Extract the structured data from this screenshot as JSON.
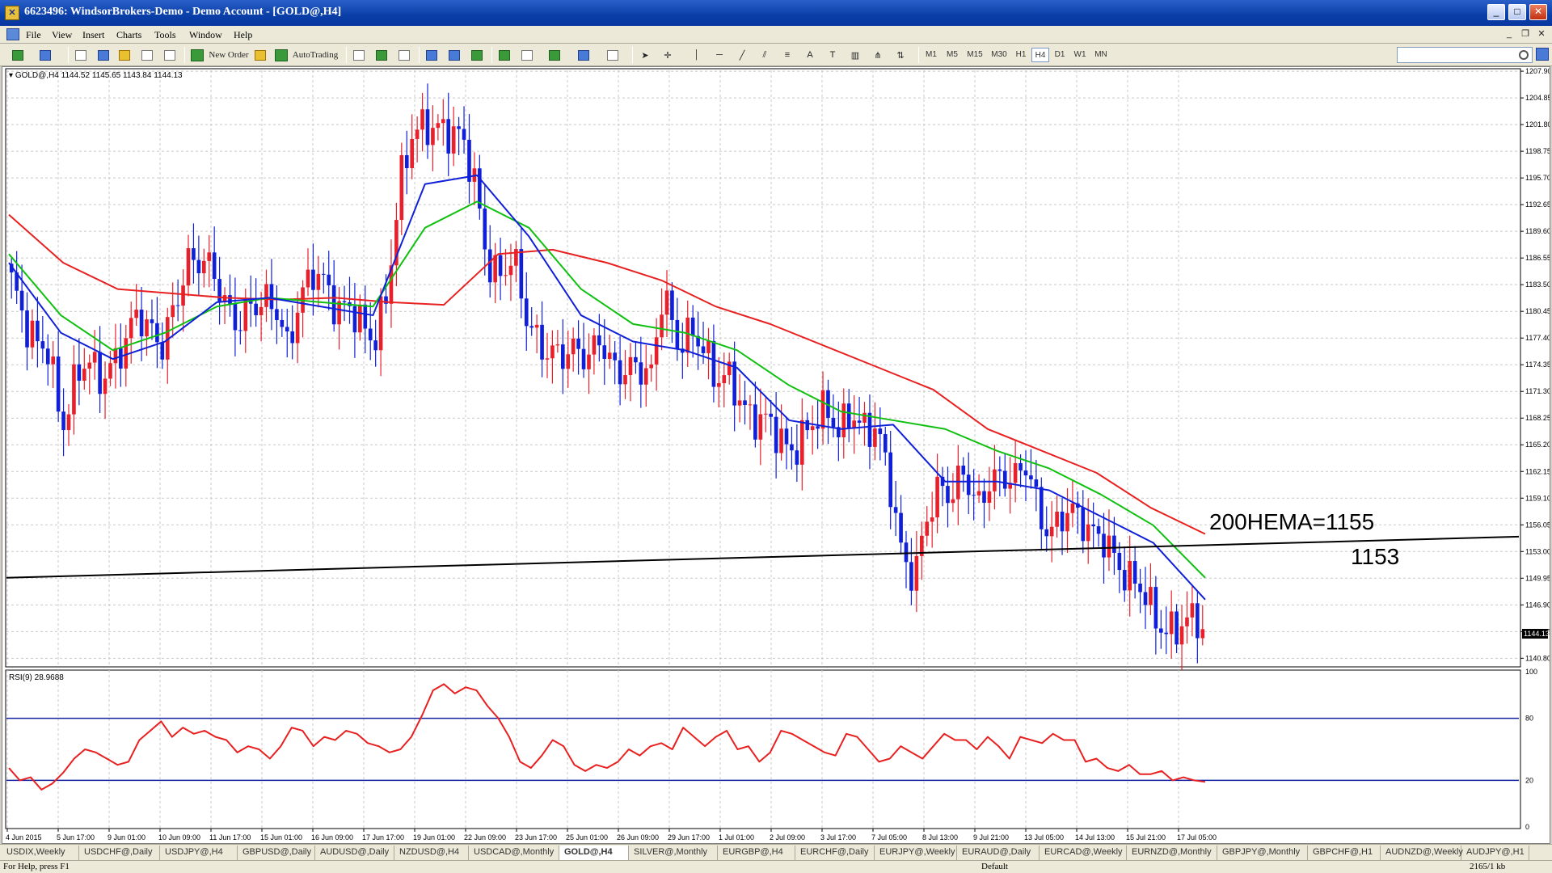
{
  "window": {
    "title": "6623496: WindsorBrokers-Demo - Demo Account - [GOLD@,H4]",
    "app_icon": "metatrader-icon"
  },
  "menu": [
    "File",
    "View",
    "Insert",
    "Charts",
    "Tools",
    "Window",
    "Help"
  ],
  "toolbar": {
    "new_order": "New Order",
    "autotrading": "AutoTrading",
    "timeframes": [
      "M1",
      "M5",
      "M15",
      "M30",
      "H1",
      "H4",
      "D1",
      "W1",
      "MN"
    ],
    "active_timeframe": "H4"
  },
  "chart": {
    "header": "GOLD@,H4  1144.52 1145.65 1143.84 1144.13",
    "current_price": "1144.13",
    "annotation_hema": "200HEMA=1155",
    "annotation_level": "1153",
    "rsi_label": "RSI(9) 28.9688",
    "colors": {
      "bull": "#e8202c",
      "bear": "#1020d8",
      "ema_red": "#e82020",
      "ema_green": "#10c010",
      "ema_blue": "#1020d8",
      "trendline": "#000000",
      "rsi": "#e82020",
      "rsi_levels": "#1020a0"
    }
  },
  "chart_data": {
    "type": "candlestick",
    "symbol": "GOLD@",
    "timeframe": "H4",
    "price_ticks": [
      "1207.90",
      "1204.85",
      "1201.80",
      "1198.75",
      "1195.70",
      "1192.65",
      "1189.60",
      "1186.55",
      "1183.50",
      "1180.45",
      "1177.40",
      "1174.35",
      "1171.30",
      "1168.25",
      "1165.20",
      "1162.15",
      "1159.10",
      "1156.05",
      "1153.00",
      "1149.95",
      "1146.90",
      "1143.85",
      "1140.80"
    ],
    "ylim": [
      1140.0,
      1208.0
    ],
    "time_ticks": [
      "4 Jun 2015",
      "5 Jun 17:00",
      "9 Jun 01:00",
      "10 Jun 09:00",
      "11 Jun 17:00",
      "15 Jun 01:00",
      "16 Jun 09:00",
      "17 Jun 17:00",
      "19 Jun 01:00",
      "22 Jun 09:00",
      "23 Jun 17:00",
      "25 Jun 01:00",
      "26 Jun 09:00",
      "29 Jun 17:00",
      "1 Jul 01:00",
      "2 Jul 09:00",
      "3 Jul 17:00",
      "7 Jul 05:00",
      "8 Jul 13:00",
      "9 Jul 21:00",
      "13 Jul 05:00",
      "14 Jul 13:00",
      "15 Jul 21:00",
      "17 Jul 05:00"
    ],
    "close_path": [
      1184,
      1178,
      1176,
      1177,
      1168,
      1172,
      1174,
      1172,
      1175,
      1178,
      1180,
      1177,
      1176,
      1182,
      1187,
      1186,
      1184,
      1181,
      1180,
      1182,
      1181,
      1180,
      1176,
      1183,
      1186,
      1183,
      1179,
      1181,
      1180,
      1178,
      1182,
      1194,
      1201,
      1203,
      1202,
      1200,
      1199,
      1195,
      1187,
      1185,
      1186,
      1179,
      1177,
      1177,
      1176,
      1175,
      1174,
      1178,
      1175,
      1174,
      1173,
      1172,
      1184,
      1178,
      1178,
      1176,
      1172,
      1174,
      1172,
      1168,
      1167,
      1166,
      1165,
      1167,
      1168,
      1168,
      1166,
      1170,
      1168,
      1167,
      1160,
      1152,
      1151,
      1158,
      1160,
      1158,
      1162,
      1159,
      1162,
      1161,
      1160,
      1163,
      1158,
      1156,
      1157,
      1156,
      1155,
      1156,
      1153,
      1149,
      1148,
      1146,
      1145,
      1145,
      1144.5,
      1144.13
    ],
    "ema_red": [
      1191.5,
      1186,
      1183,
      1182.5,
      1182,
      1181.8,
      1182,
      1181.5,
      1181.2,
      1187,
      1187.5,
      1186,
      1184,
      1181,
      1179,
      1176.5,
      1174,
      1171.5,
      1167,
      1164.5,
      1162,
      1158,
      1155
    ],
    "ema_green": [
      1187,
      1180,
      1176,
      1178,
      1181,
      1182,
      1181.5,
      1181,
      1190,
      1193,
      1190,
      1183,
      1179,
      1178,
      1176,
      1172,
      1169,
      1168,
      1167,
      1164.5,
      1162.5,
      1159.5,
      1156,
      1150
    ],
    "ema_blue": [
      1186,
      1178,
      1175,
      1177,
      1181.5,
      1182,
      1181,
      1180,
      1195,
      1196,
      1189,
      1180,
      1177,
      1176,
      1174,
      1168,
      1167,
      1167.5,
      1161,
      1161,
      1160,
      1157,
      1154,
      1147.5
    ],
    "trendline": {
      "start": 1150.0,
      "end": 1154.7
    },
    "rsi": {
      "period": 9,
      "value": 28.9688,
      "levels": [
        70,
        30
      ],
      "ylim": [
        0,
        100
      ],
      "y_ticks": [
        "100",
        "80",
        "20",
        "0"
      ],
      "values": [
        38,
        30,
        32,
        24,
        28,
        35,
        44,
        50,
        48,
        44,
        40,
        42,
        56,
        62,
        68,
        58,
        64,
        60,
        62,
        58,
        56,
        48,
        52,
        50,
        44,
        52,
        64,
        62,
        52,
        58,
        56,
        62,
        60,
        54,
        52,
        48,
        50,
        58,
        72,
        88,
        92,
        86,
        90,
        88,
        78,
        70,
        58,
        42,
        38,
        46,
        56,
        52,
        40,
        36,
        40,
        38,
        42,
        50,
        46,
        52,
        54,
        50,
        64,
        58,
        52,
        58,
        62,
        50,
        52,
        42,
        48,
        62,
        60,
        56,
        52,
        48,
        46,
        60,
        58,
        50,
        42,
        44,
        52,
        48,
        44,
        52,
        60,
        56,
        56,
        50,
        58,
        52,
        44,
        58,
        56,
        54,
        60,
        56,
        56,
        42,
        44,
        38,
        36,
        40,
        34,
        34,
        36,
        30,
        32,
        30,
        29
      ]
    }
  },
  "tabs": [
    "USDIX,Weekly",
    "USDCHF@,Daily",
    "USDJPY@,H4",
    "GBPUSD@,Daily",
    "AUDUSD@,Daily",
    "NZDUSD@,H4",
    "USDCAD@,Monthly",
    "GOLD@,H4",
    "SILVER@,Monthly",
    "EURGBP@,H4",
    "EURCHF@,Daily",
    "EURJPY@,Weekly",
    "EURAUD@,Daily",
    "EURCAD@,Weekly",
    "EURNZD@,Monthly",
    "GBPJPY@,Monthly",
    "GBPCHF@,H1",
    "AUDNZD@,Weekly",
    "AUDJPY@,H1"
  ],
  "active_tab": "GOLD@,H4",
  "status": {
    "help": "For Help, press F1",
    "profile": "Default",
    "traffic": "2165/1 kb"
  }
}
